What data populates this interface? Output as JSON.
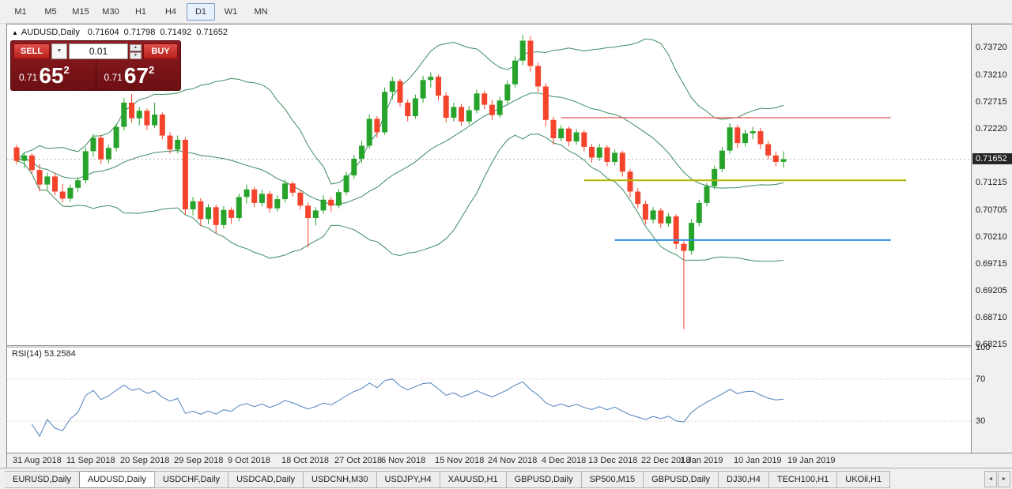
{
  "toolbar": {
    "timeframes": [
      "M1",
      "M5",
      "M15",
      "M30",
      "H1",
      "H4",
      "D1",
      "W1",
      "MN"
    ],
    "active_timeframe": "D1"
  },
  "chart_header": {
    "symbol": "AUDUSD,Daily",
    "open": "0.71604",
    "high": "0.71798",
    "low": "0.71492",
    "close": "0.71652"
  },
  "trade_panel": {
    "sell_label": "SELL",
    "buy_label": "BUY",
    "volume": "0.01",
    "bid": {
      "prefix": "0.71",
      "big": "65",
      "sup": "2"
    },
    "ask": {
      "prefix": "0.71",
      "big": "67",
      "sup": "2"
    }
  },
  "icons": {
    "collapse": "▲",
    "dropdown": "▼",
    "spin_up": "▲",
    "spin_down": "▼",
    "scroll_left": "◄",
    "scroll_right": "►"
  },
  "price_axis": {
    "labels": [
      "0.73720",
      "0.73210",
      "0.72715",
      "0.72220",
      "0.71215",
      "0.70705",
      "0.70210",
      "0.69715",
      "0.69205",
      "0.68710",
      "0.68215"
    ],
    "current": "0.71652"
  },
  "rsi_panel": {
    "label": "RSI(14) 53.2584",
    "levels": [
      "100",
      "70",
      "30"
    ]
  },
  "date_axis": [
    {
      "label": "31 Aug 2018",
      "index": 0
    },
    {
      "label": "11 Sep 2018",
      "index": 7
    },
    {
      "label": "20 Sep 2018",
      "index": 14
    },
    {
      "label": "29 Sep 2018",
      "index": 21
    },
    {
      "label": "9 Oct 2018",
      "index": 28
    },
    {
      "label": "18 Oct 2018",
      "index": 35
    },
    {
      "label": "27 Oct 2018",
      "index": 42
    },
    {
      "label": "6 Nov 2018",
      "index": 48
    },
    {
      "label": "15 Nov 2018",
      "index": 55
    },
    {
      "label": "24 Nov 2018",
      "index": 62
    },
    {
      "label": "4 Dec 2018",
      "index": 69
    },
    {
      "label": "13 Dec 2018",
      "index": 75
    },
    {
      "label": "22 Dec 2018",
      "index": 82
    },
    {
      "label": "1 Jan 2019",
      "index": 87
    },
    {
      "label": "10 Jan 2019",
      "index": 94
    },
    {
      "label": "19 Jan 2019",
      "index": 101
    }
  ],
  "tabs": {
    "items": [
      "EURUSD,Daily",
      "AUDUSD,Daily",
      "USDCHF,Daily",
      "USDCAD,Daily",
      "USDCNH,M30",
      "USDJPY,H4",
      "XAUUSD,H1",
      "GBPUSD,Daily",
      "SP500,M15",
      "GBPUSD,Daily",
      "DJ30,H4",
      "TECH100,H1",
      "UKOil,H1"
    ],
    "active_index": 1
  },
  "colors": {
    "candle_up": "#27a32b",
    "candle_down": "#f5442c",
    "bollinger": "#3d8b5f",
    "rsi_line": "#4f81bd",
    "bid_line": "#bbbbbb",
    "level_line": "#c8c8c8",
    "price_tag_bg": "#262626"
  },
  "chart_data": {
    "type": "candlestick",
    "symbol": "AUDUSD",
    "period": "Daily",
    "price_scale": {
      "max": 0.7415,
      "min": 0.682
    },
    "indicators": {
      "bollinger": {
        "period": 20,
        "deviation": 2
      },
      "rsi": {
        "period": 14,
        "value": 53.2584
      }
    },
    "rsi_levels": [
      70,
      30
    ],
    "hlines": [
      {
        "price": 0.7242,
        "color": "#e85252",
        "width": 1.2,
        "from_index": 71,
        "to_index": 114
      },
      {
        "price": 0.7126,
        "color": "#b2b800",
        "width": 2,
        "from_index": 74,
        "to_index": 116
      },
      {
        "price": 0.7015,
        "color": "#2e8fe2",
        "width": 2,
        "from_index": 78,
        "to_index": 114
      }
    ],
    "dates": [
      "2018.08.31",
      "2018.09.03",
      "2018.09.04",
      "2018.09.05",
      "2018.09.06",
      "2018.09.07",
      "2018.09.10",
      "2018.09.11",
      "2018.09.12",
      "2018.09.13",
      "2018.09.14",
      "2018.09.17",
      "2018.09.18",
      "2018.09.19",
      "2018.09.20",
      "2018.09.21",
      "2018.09.24",
      "2018.09.25",
      "2018.09.26",
      "2018.09.27",
      "2018.09.28",
      "2018.10.01",
      "2018.10.02",
      "2018.10.03",
      "2018.10.04",
      "2018.10.05",
      "2018.10.08",
      "2018.10.09",
      "2018.10.10",
      "2018.10.11",
      "2018.10.12",
      "2018.10.15",
      "2018.10.16",
      "2018.10.17",
      "2018.10.18",
      "2018.10.19",
      "2018.10.22",
      "2018.10.23",
      "2018.10.24",
      "2018.10.25",
      "2018.10.26",
      "2018.10.29",
      "2018.10.30",
      "2018.10.31",
      "2018.11.01",
      "2018.11.02",
      "2018.11.05",
      "2018.11.06",
      "2018.11.07",
      "2018.11.08",
      "2018.11.09",
      "2018.11.12",
      "2018.11.13",
      "2018.11.14",
      "2018.11.15",
      "2018.11.16",
      "2018.11.19",
      "2018.11.20",
      "2018.11.21",
      "2018.11.22",
      "2018.11.23",
      "2018.11.26",
      "2018.11.27",
      "2018.11.28",
      "2018.11.29",
      "2018.11.30",
      "2018.12.03",
      "2018.12.04",
      "2018.12.05",
      "2018.12.06",
      "2018.12.07",
      "2018.12.10",
      "2018.12.11",
      "2018.12.12",
      "2018.12.13",
      "2018.12.14",
      "2018.12.17",
      "2018.12.18",
      "2018.12.19",
      "2018.12.20",
      "2018.12.21",
      "2018.12.24",
      "2018.12.26",
      "2018.12.27",
      "2018.12.28",
      "2018.12.31",
      "2019.01.02",
      "2019.01.03",
      "2019.01.04",
      "2019.01.07",
      "2019.01.08",
      "2019.01.09",
      "2019.01.10",
      "2019.01.11",
      "2019.01.14",
      "2019.01.15",
      "2019.01.16",
      "2019.01.17",
      "2019.01.18",
      "2019.01.21",
      "2019.01.22"
    ],
    "ohlc": [
      [
        0.7187,
        0.7192,
        0.7156,
        0.7162
      ],
      [
        0.7162,
        0.7178,
        0.7148,
        0.7172
      ],
      [
        0.7172,
        0.7176,
        0.7138,
        0.7145
      ],
      [
        0.7145,
        0.7156,
        0.7105,
        0.7118
      ],
      [
        0.7118,
        0.714,
        0.7108,
        0.7133
      ],
      [
        0.7133,
        0.7139,
        0.7098,
        0.7105
      ],
      [
        0.7105,
        0.7119,
        0.7085,
        0.7092
      ],
      [
        0.7092,
        0.7118,
        0.7086,
        0.7112
      ],
      [
        0.7112,
        0.7131,
        0.7104,
        0.7126
      ],
      [
        0.7126,
        0.7187,
        0.712,
        0.718
      ],
      [
        0.718,
        0.7212,
        0.7169,
        0.7205
      ],
      [
        0.7205,
        0.721,
        0.7156,
        0.7165
      ],
      [
        0.7165,
        0.7192,
        0.7158,
        0.7186
      ],
      [
        0.7186,
        0.7231,
        0.718,
        0.7225
      ],
      [
        0.7225,
        0.7279,
        0.7218,
        0.727
      ],
      [
        0.727,
        0.7286,
        0.7233,
        0.7241
      ],
      [
        0.7241,
        0.7262,
        0.7228,
        0.7255
      ],
      [
        0.7255,
        0.7259,
        0.7219,
        0.7228
      ],
      [
        0.7228,
        0.727,
        0.7223,
        0.7248
      ],
      [
        0.7248,
        0.7252,
        0.7202,
        0.7209
      ],
      [
        0.7209,
        0.7215,
        0.7175,
        0.7183
      ],
      [
        0.7183,
        0.7209,
        0.7176,
        0.7201
      ],
      [
        0.7201,
        0.7206,
        0.7062,
        0.7072
      ],
      [
        0.7072,
        0.7095,
        0.7061,
        0.7087
      ],
      [
        0.7087,
        0.7093,
        0.7041,
        0.7054
      ],
      [
        0.7054,
        0.7082,
        0.7045,
        0.7076
      ],
      [
        0.7076,
        0.7081,
        0.7028,
        0.7043
      ],
      [
        0.7043,
        0.7078,
        0.7036,
        0.7071
      ],
      [
        0.7071,
        0.7076,
        0.7045,
        0.7056
      ],
      [
        0.7056,
        0.7101,
        0.705,
        0.7095
      ],
      [
        0.7095,
        0.7118,
        0.7083,
        0.7109
      ],
      [
        0.7109,
        0.7114,
        0.7076,
        0.7084
      ],
      [
        0.7084,
        0.7108,
        0.7078,
        0.7101
      ],
      [
        0.7101,
        0.7106,
        0.7066,
        0.7074
      ],
      [
        0.7074,
        0.7098,
        0.7068,
        0.7091
      ],
      [
        0.7091,
        0.7127,
        0.7085,
        0.712
      ],
      [
        0.712,
        0.7124,
        0.7096,
        0.7103
      ],
      [
        0.7103,
        0.7109,
        0.7072,
        0.7079
      ],
      [
        0.7079,
        0.7085,
        0.7002,
        0.7056
      ],
      [
        0.7056,
        0.7076,
        0.7042,
        0.707
      ],
      [
        0.707,
        0.7098,
        0.7064,
        0.709
      ],
      [
        0.709,
        0.7095,
        0.7068,
        0.7079
      ],
      [
        0.7079,
        0.711,
        0.7074,
        0.7104
      ],
      [
        0.7104,
        0.7142,
        0.7098,
        0.7135
      ],
      [
        0.7135,
        0.7173,
        0.7129,
        0.7166
      ],
      [
        0.7166,
        0.7199,
        0.7158,
        0.719
      ],
      [
        0.719,
        0.7248,
        0.7185,
        0.724
      ],
      [
        0.724,
        0.7245,
        0.7205,
        0.7215
      ],
      [
        0.7215,
        0.7298,
        0.721,
        0.729
      ],
      [
        0.729,
        0.7318,
        0.7276,
        0.731
      ],
      [
        0.731,
        0.7314,
        0.7262,
        0.727
      ],
      [
        0.727,
        0.7276,
        0.7235,
        0.7245
      ],
      [
        0.7245,
        0.7285,
        0.724,
        0.7278
      ],
      [
        0.7278,
        0.732,
        0.727,
        0.7312
      ],
      [
        0.7312,
        0.7326,
        0.7298,
        0.7318
      ],
      [
        0.7318,
        0.7322,
        0.7274,
        0.7283
      ],
      [
        0.7283,
        0.7289,
        0.7233,
        0.7242
      ],
      [
        0.7242,
        0.727,
        0.7235,
        0.7262
      ],
      [
        0.7262,
        0.7268,
        0.7227,
        0.7235
      ],
      [
        0.7235,
        0.7264,
        0.7229,
        0.7256
      ],
      [
        0.7256,
        0.7294,
        0.725,
        0.7287
      ],
      [
        0.7287,
        0.7292,
        0.7258,
        0.7266
      ],
      [
        0.7266,
        0.7275,
        0.7238,
        0.7247
      ],
      [
        0.7247,
        0.7281,
        0.7242,
        0.7274
      ],
      [
        0.7274,
        0.7311,
        0.7268,
        0.7304
      ],
      [
        0.7304,
        0.7356,
        0.7298,
        0.7348
      ],
      [
        0.7348,
        0.7395,
        0.734,
        0.7385
      ],
      [
        0.7385,
        0.7393,
        0.7328,
        0.7338
      ],
      [
        0.7338,
        0.7344,
        0.729,
        0.73
      ],
      [
        0.73,
        0.7306,
        0.7226,
        0.7238
      ],
      [
        0.7238,
        0.7244,
        0.7192,
        0.7204
      ],
      [
        0.7204,
        0.7228,
        0.7198,
        0.7222
      ],
      [
        0.7222,
        0.7226,
        0.7189,
        0.7198
      ],
      [
        0.7198,
        0.7221,
        0.7192,
        0.7215
      ],
      [
        0.7215,
        0.7219,
        0.718,
        0.7188
      ],
      [
        0.7188,
        0.7193,
        0.7159,
        0.7168
      ],
      [
        0.7168,
        0.7194,
        0.7162,
        0.7187
      ],
      [
        0.7187,
        0.7191,
        0.7152,
        0.716
      ],
      [
        0.716,
        0.7183,
        0.7154,
        0.7177
      ],
      [
        0.7177,
        0.7181,
        0.7133,
        0.7142
      ],
      [
        0.7142,
        0.7147,
        0.7094,
        0.7105
      ],
      [
        0.7105,
        0.7112,
        0.7074,
        0.7082
      ],
      [
        0.7082,
        0.7088,
        0.7044,
        0.7053
      ],
      [
        0.7053,
        0.7076,
        0.7046,
        0.707
      ],
      [
        0.707,
        0.7075,
        0.7038,
        0.7046
      ],
      [
        0.7046,
        0.7065,
        0.704,
        0.7059
      ],
      [
        0.7059,
        0.7063,
        0.6998,
        0.7008
      ],
      [
        0.7008,
        0.7013,
        0.685,
        0.6995
      ],
      [
        0.6995,
        0.7054,
        0.6988,
        0.7047
      ],
      [
        0.7047,
        0.709,
        0.7041,
        0.7084
      ],
      [
        0.7084,
        0.7121,
        0.7078,
        0.7115
      ],
      [
        0.7115,
        0.7153,
        0.7109,
        0.7147
      ],
      [
        0.7147,
        0.7188,
        0.7141,
        0.7181
      ],
      [
        0.7181,
        0.7232,
        0.7175,
        0.7224
      ],
      [
        0.7224,
        0.7229,
        0.7186,
        0.7195
      ],
      [
        0.7195,
        0.722,
        0.7189,
        0.7213
      ],
      [
        0.7213,
        0.7225,
        0.7202,
        0.7217
      ],
      [
        0.7217,
        0.7223,
        0.7184,
        0.7193
      ],
      [
        0.7193,
        0.7199,
        0.7165,
        0.7172
      ],
      [
        0.7172,
        0.7179,
        0.7152,
        0.716
      ],
      [
        0.71604,
        0.71798,
        0.71492,
        0.71652
      ]
    ]
  }
}
